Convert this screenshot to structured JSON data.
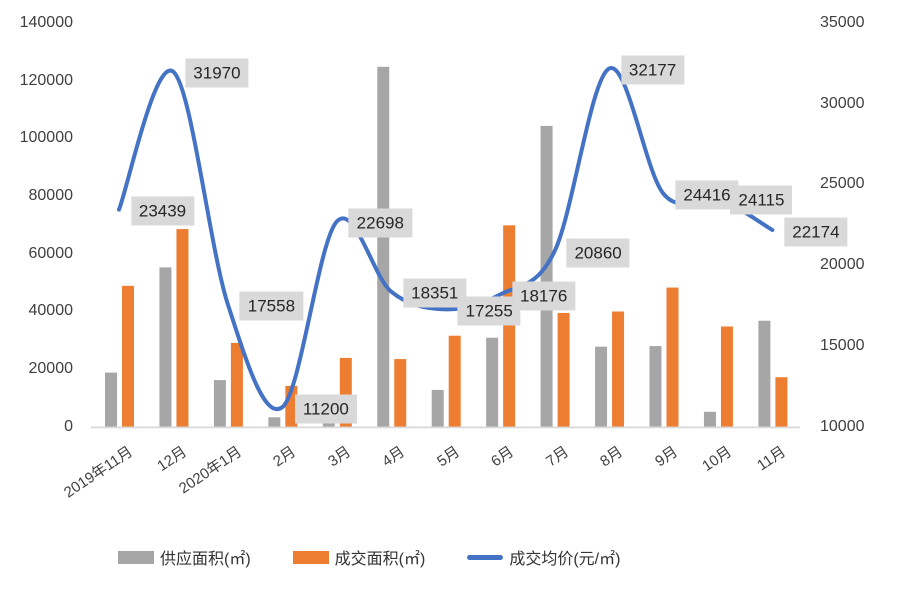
{
  "chart_data": {
    "type": "combo",
    "title": "",
    "categories": [
      "2019年11月",
      "12月",
      "2020年1月",
      "2月",
      "3月",
      "4月",
      "5月",
      "6月",
      "7月",
      "8月",
      "9月",
      "10月",
      "11月"
    ],
    "series": [
      {
        "name": "供应面积(㎡)",
        "type": "bar",
        "axis": "left",
        "color": "#a6a6a6",
        "values": [
          18700,
          55200,
          16100,
          3200,
          1400,
          124800,
          12700,
          30800,
          104300,
          27700,
          27900,
          5100,
          36700
        ]
      },
      {
        "name": "成交面积(㎡)",
        "type": "bar",
        "axis": "left",
        "color": "#ed7d31",
        "values": [
          48800,
          68500,
          29000,
          14100,
          23800,
          23400,
          31500,
          69800,
          39400,
          39900,
          48200,
          34700,
          17100
        ]
      },
      {
        "name": "成交均价(元/㎡)",
        "type": "line",
        "axis": "right",
        "color": "#4472c4",
        "smooth": true,
        "data_labels": true,
        "values": [
          23439,
          31970,
          17558,
          11200,
          22698,
          18351,
          17255,
          18176,
          20860,
          32177,
          24416,
          24115,
          22174
        ]
      }
    ],
    "left_axis": {
      "min": 0,
      "max": 140000,
      "step": 20000,
      "tick_labels": [
        "0",
        "20000",
        "40000",
        "60000",
        "80000",
        "100000",
        "120000",
        "140000"
      ]
    },
    "right_axis": {
      "min": 10000,
      "max": 35000,
      "step": 5000,
      "tick_labels": [
        "10000",
        "15000",
        "20000",
        "25000",
        "30000",
        "35000"
      ]
    },
    "grid": false,
    "legend_position": "bottom",
    "styles": {
      "data_label_bg": "#d9d9d9",
      "data_label_text": "#262626",
      "axis_text": "#404040",
      "axis_line": "#d9d9d9",
      "background": "#ffffff"
    }
  }
}
